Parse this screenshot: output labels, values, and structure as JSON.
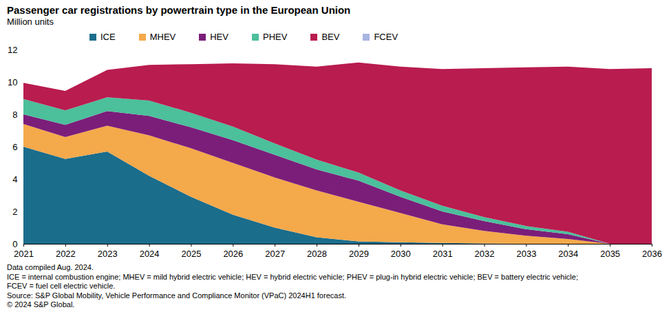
{
  "chart_data": {
    "type": "stacked_area",
    "title": "Passenger car registrations by powertrain type in the European Union",
    "subtitle": "Million units",
    "x": [
      2021,
      2022,
      2023,
      2024,
      2025,
      2026,
      2027,
      2028,
      2029,
      2030,
      2031,
      2032,
      2033,
      2034,
      2035,
      2036
    ],
    "xlim": [
      2021,
      2036
    ],
    "xticks": [
      2021,
      2022,
      2023,
      2024,
      2025,
      2026,
      2027,
      2028,
      2029,
      2030,
      2031,
      2032,
      2033,
      2034,
      2035,
      2036
    ],
    "ylim": [
      0,
      12
    ],
    "yticks": [
      0,
      2,
      4,
      6,
      8,
      10,
      12
    ],
    "stacked": true,
    "grid": false,
    "legend": "top",
    "series": [
      {
        "name": "ICE",
        "color": "#1b6d8c",
        "values": [
          6.0,
          5.25,
          5.7,
          4.2,
          2.9,
          1.8,
          1.0,
          0.4,
          0.15,
          0.1,
          0.05,
          0.02,
          0,
          0,
          0,
          0
        ]
      },
      {
        "name": "MHEV",
        "color": "#f4a94b",
        "values": [
          1.4,
          1.35,
          1.6,
          2.5,
          3.0,
          3.2,
          3.1,
          2.9,
          2.45,
          1.8,
          1.15,
          0.78,
          0.5,
          0.3,
          0,
          0
        ]
      },
      {
        "name": "HEV",
        "color": "#7b1e7a",
        "values": [
          0.6,
          0.75,
          0.9,
          1.2,
          1.3,
          1.4,
          1.4,
          1.3,
          1.3,
          1.0,
          0.8,
          0.6,
          0.4,
          0.3,
          0,
          0
        ]
      },
      {
        "name": "PHEV",
        "color": "#4cbf9b",
        "values": [
          0.95,
          0.9,
          0.85,
          0.95,
          0.9,
          0.85,
          0.7,
          0.6,
          0.5,
          0.4,
          0.35,
          0.25,
          0.2,
          0.15,
          0,
          0
        ]
      },
      {
        "name": "BEV",
        "color": "#b91c4f",
        "values": [
          1.0,
          1.2,
          1.7,
          2.2,
          3.0,
          3.9,
          4.9,
          5.75,
          6.8,
          7.65,
          8.45,
          9.2,
          9.8,
          10.2,
          10.8,
          10.85
        ]
      },
      {
        "name": "FCEV",
        "color": "#a9b4e0",
        "values": [
          0,
          0,
          0,
          0,
          0,
          0,
          0,
          0,
          0,
          0,
          0,
          0,
          0,
          0,
          0,
          0
        ]
      }
    ],
    "notes": [
      "Data compiled Aug. 2024.",
      "ICE = internal combustion engine; MHEV  = mild hybrid electric vehicle; HEV = hybrid electric vehicle; PHEV = plug-in hybrid electric vehicle; BEV = battery electric vehicle;",
      "FCEV = fuel cell electric vehicle.",
      "Source: S&P Global Mobility, Vehicle Performance and Compliance Monitor (VPaC) 2024H1 forecast.",
      "© 2024 S&P Global."
    ]
  }
}
